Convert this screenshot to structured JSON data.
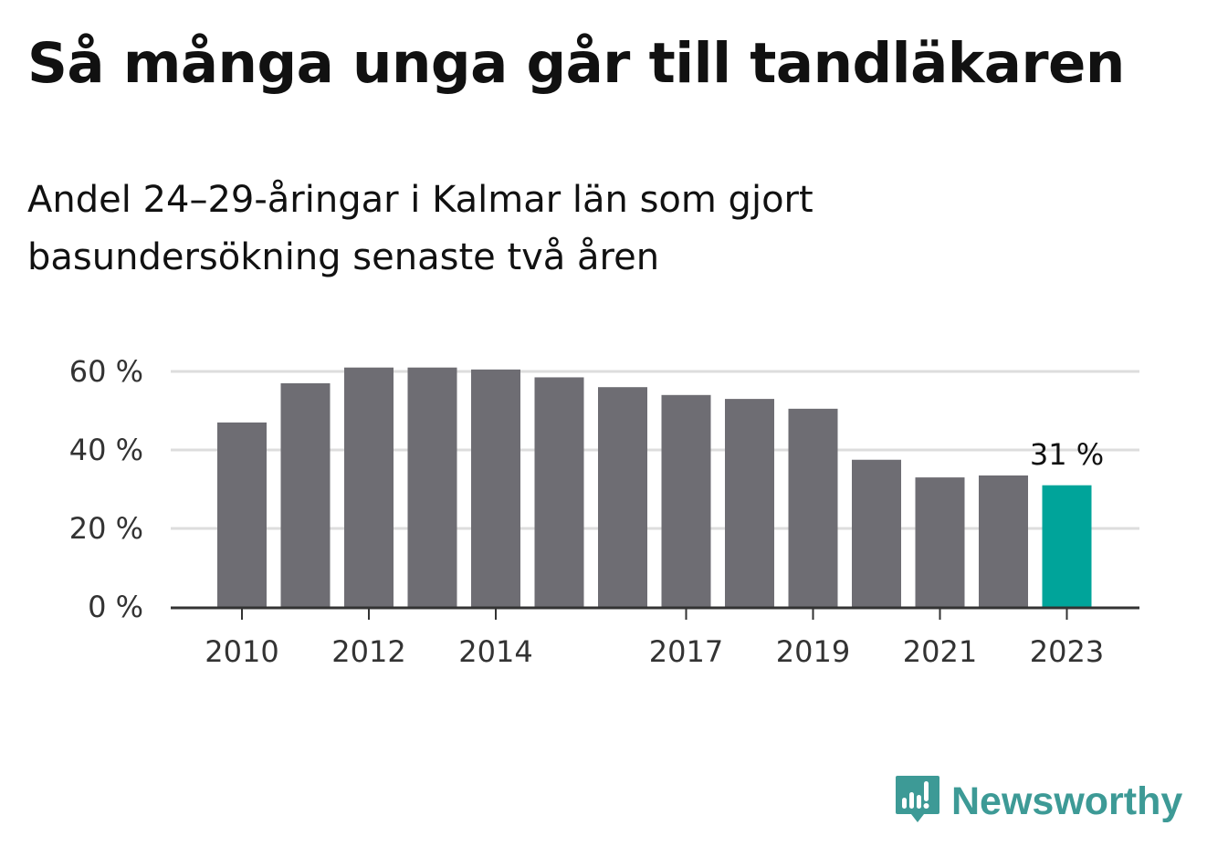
{
  "title": "Så många unga går till tandläkaren",
  "subtitle": "Andel 24–29-åringar i Kalmar län som gjort basundersökning senaste två åren",
  "brand": {
    "name": "Newsworthy",
    "color": "#3d9a96",
    "icon": "newsworthy-chart-bubble-icon"
  },
  "chart_data": {
    "type": "bar",
    "categories": [
      "2010",
      "2011",
      "2012",
      "2013",
      "2014",
      "2015",
      "2016",
      "2017",
      "2018",
      "2019",
      "2020",
      "2021",
      "2022",
      "2023"
    ],
    "x_tick_labels": [
      "2010",
      "2012",
      "2014",
      "2017",
      "2019",
      "2021",
      "2023"
    ],
    "values": [
      47,
      57,
      61,
      61,
      60.5,
      58.5,
      56,
      54,
      53,
      50.5,
      37.5,
      33,
      33.5,
      31
    ],
    "highlight_index": 13,
    "highlight_label": "31 %",
    "y_ticks": [
      0,
      20,
      40,
      60
    ],
    "y_tick_labels": [
      "0 %",
      "20 %",
      "40 %",
      "60 %"
    ],
    "ylim": [
      0,
      60
    ],
    "grid": true,
    "colors": {
      "bar": "#6e6d73",
      "highlight": "#00a49a",
      "grid": "#dddddd",
      "axis": "#333333"
    }
  }
}
